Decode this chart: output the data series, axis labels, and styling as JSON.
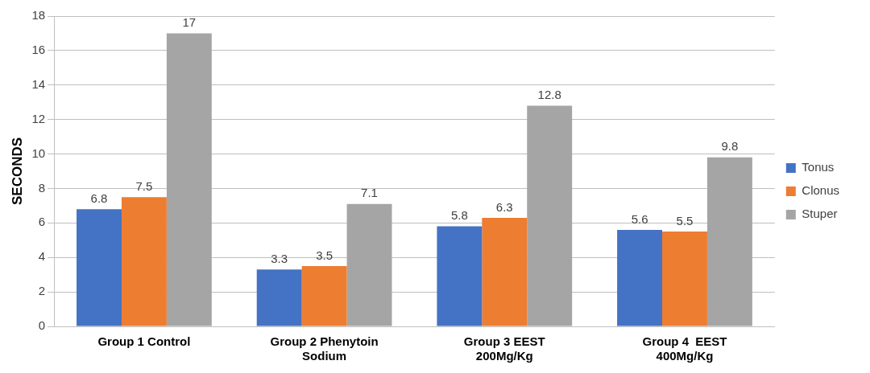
{
  "chart_data": {
    "type": "bar",
    "ylabel": "SECONDS",
    "categories": [
      "Group 1 Control",
      "Group 2 Phenytoin Sodium",
      "Group 3 EEST 200Mg/Kg",
      "Group 4  EEST 400Mg/Kg"
    ],
    "series": [
      {
        "name": "Tonus",
        "color": "#4472c4",
        "values": [
          6.8,
          3.3,
          5.8,
          5.6
        ]
      },
      {
        "name": "Clonus",
        "color": "#ed7d31",
        "values": [
          7.5,
          3.5,
          6.3,
          5.5
        ]
      },
      {
        "name": "Stuper",
        "color": "#a5a5a5",
        "values": [
          17,
          7.1,
          12.8,
          9.8
        ]
      }
    ],
    "ylim": [
      0,
      18
    ],
    "yticks": [
      0,
      2,
      4,
      6,
      8,
      10,
      12,
      14,
      16,
      18
    ],
    "grid": "y",
    "legend": "right",
    "data_labels": true
  }
}
